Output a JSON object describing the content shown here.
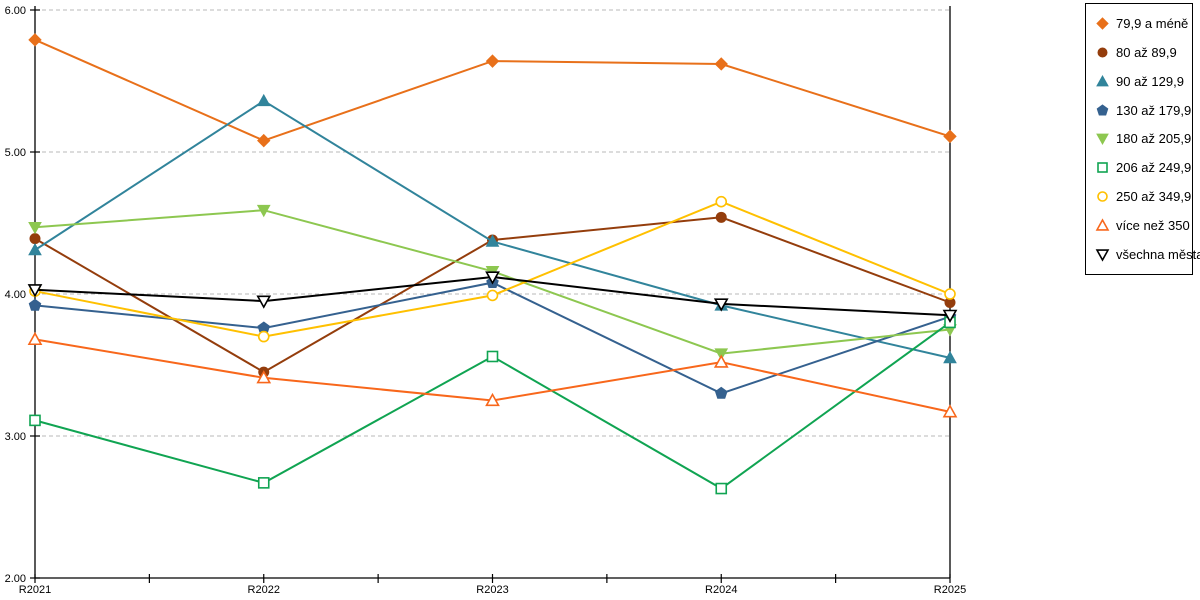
{
  "chart_data": {
    "type": "line",
    "title": "",
    "categories": [
      "R2021",
      "R2022",
      "R2023",
      "R2024",
      "R2025"
    ],
    "series": [
      {
        "name": "79,9 a méně",
        "color": "#E8701A",
        "marker": "diamond",
        "marker_fill": "solid",
        "values": [
          5.79,
          5.08,
          5.64,
          5.62,
          5.11
        ]
      },
      {
        "name": "80 až 89,9",
        "color": "#943D0C",
        "marker": "circle",
        "marker_fill": "solid",
        "values": [
          4.39,
          3.45,
          4.38,
          4.54,
          3.94
        ]
      },
      {
        "name": "90 až 129,9",
        "color": "#31849B",
        "marker": "triangle-up",
        "marker_fill": "solid",
        "values": [
          4.31,
          5.36,
          4.37,
          3.92,
          3.55
        ]
      },
      {
        "name": "130 až 179,9",
        "color": "#35618F",
        "marker": "pentagon",
        "marker_fill": "solid",
        "values": [
          3.92,
          3.76,
          4.08,
          3.3,
          3.84
        ]
      },
      {
        "name": "180 až 205,9",
        "color": "#8DC750",
        "marker": "triangle-down",
        "marker_fill": "solid",
        "values": [
          4.47,
          4.59,
          4.16,
          3.58,
          3.75
        ]
      },
      {
        "name": "206 až 249,9",
        "color": "#10A452",
        "marker": "square",
        "marker_fill": "open",
        "values": [
          3.11,
          2.67,
          3.56,
          2.63,
          3.8
        ]
      },
      {
        "name": "250 až 349,9",
        "color": "#FFC000",
        "marker": "circle",
        "marker_fill": "open",
        "values": [
          4.02,
          3.7,
          3.99,
          4.65,
          4.0
        ]
      },
      {
        "name": "více než 350",
        "color": "#F8671B",
        "marker": "triangle-up",
        "marker_fill": "open",
        "values": [
          3.68,
          3.41,
          3.25,
          3.52,
          3.17
        ]
      },
      {
        "name": "všechna města",
        "color": "#000000",
        "marker": "triangle-down",
        "marker_fill": "open",
        "values": [
          4.03,
          3.95,
          4.12,
          3.93,
          3.85
        ]
      }
    ],
    "xlabel": "",
    "ylabel": "",
    "x_axis": {
      "tick_labels": [
        "R2021",
        "R2022",
        "R2023",
        "R2024",
        "R2025"
      ]
    },
    "y_axis": {
      "min": 2.0,
      "max": 6.0,
      "step": 1.0,
      "tick_labels": [
        "2.00",
        "3.00",
        "4.00",
        "5.00",
        "6.00"
      ]
    },
    "grid": {
      "horizontal_major": true,
      "style": "dashed",
      "color": "#B8B8B8"
    },
    "axis_color": "#000000",
    "background_color": "#FFFFFF",
    "legend": {
      "position": "right",
      "border_color": "#000000"
    }
  }
}
